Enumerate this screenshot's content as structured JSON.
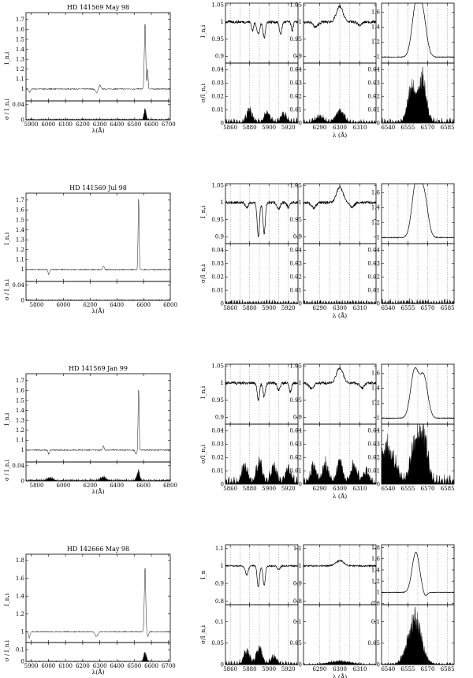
{
  "figure": {
    "rows": [
      {
        "title": "HD 141569 May 98",
        "full": {
          "xlabel": "λ(Å)",
          "ylabel": "I_n,i",
          "sigma_ylabel": "σ / I_n,i",
          "xlim": [
            5870,
            6710
          ],
          "xticks": [
            5900,
            6000,
            6100,
            6200,
            6300,
            6400,
            6500,
            6600,
            6700
          ],
          "ylim": [
            0.88,
            1.77
          ],
          "yticks": [
            1,
            1.1,
            1.2,
            1.3,
            1.4,
            1.5,
            1.6,
            1.7
          ],
          "sigma_ylim": [
            0,
            0.05
          ],
          "sigma_yticks": [
            0,
            0.04
          ],
          "features": [
            [
              5890,
              0.97,
              6
            ],
            [
              6280,
              0.96,
              6
            ],
            [
              6300,
              1.04,
              5
            ],
            [
              6563,
              1.66,
              4
            ],
            [
              6578,
              1.2,
              3
            ]
          ],
          "sigma_features": [
            [
              6563,
              0.03,
              6
            ]
          ],
          "sigma_noise": 0.004
        },
        "zooms": {
          "ylabel": "I_n,i",
          "sigma_ylabel": "σ/I_n,i",
          "xlabel": "λ (Å)",
          "nai": {
            "xlim": [
              5855,
              5930
            ],
            "xticks": [
              5860,
              5880,
              5900,
              5920
            ],
            "ylim": [
              0.88,
              1.055
            ],
            "yticks": [
              0.9,
              0.95,
              1,
              1.05
            ],
            "features": [
              [
                5889,
                0.965,
                1.5
              ],
              [
                5895,
                0.955,
                1.2
              ],
              [
                5883,
                0.975,
                1
              ],
              [
                5912,
                0.965,
                1.3
              ],
              [
                5924,
                0.975,
                1
              ]
            ],
            "sigma_features": [
              [
                5880,
                0.01,
                3
              ],
              [
                5898,
                0.008,
                3
              ],
              [
                5915,
                0.007,
                3
              ]
            ],
            "sigma_noise": 0.004
          },
          "oi": {
            "xlim": [
              6282,
              6318
            ],
            "xticks": [
              6290,
              6300,
              6310
            ],
            "ylim": [
              0.88,
              1.055
            ],
            "yticks": [
              0.9,
              0.95,
              1,
              1.05
            ],
            "features": [
              [
                6300,
                1.045,
                1.6
              ],
              [
                6288,
                0.985,
                1.2
              ],
              [
                6310,
                0.99,
                1
              ]
            ],
            "sigma_features": [
              [
                6300,
                0.01,
                2
              ],
              [
                6290,
                0.005,
                2
              ]
            ],
            "sigma_noise": 0.003
          },
          "ha": {
            "xlim": [
              6535,
              6590
            ],
            "xticks": [
              6540,
              6555,
              6570,
              6585
            ],
            "ylim": [
              0.92,
              1.72
            ],
            "yticks": [
              1,
              1.2,
              1.4,
              1.6
            ],
            "features": [
              [
                6561,
                1.64,
                3
              ],
              [
                6566,
                1.55,
                3
              ]
            ],
            "sigma_features": [
              [
                6558,
                0.03,
                3
              ],
              [
                6566,
                0.035,
                3
              ]
            ],
            "sigma_noise": 0.004
          }
        }
      },
      {
        "title": "HD 141569 Jul 98",
        "full": {
          "xlabel": "λ(Å)",
          "ylabel": "I_n,i",
          "sigma_ylabel": "σ / I_n,i",
          "xlim": [
            5720,
            6800
          ],
          "xticks": [
            5800,
            6000,
            6200,
            6400,
            6600,
            6800
          ],
          "ylim": [
            0.88,
            1.77
          ],
          "yticks": [
            1,
            1.1,
            1.2,
            1.3,
            1.4,
            1.5,
            1.6,
            1.7
          ],
          "sigma_ylim": [
            0,
            0.05
          ],
          "sigma_yticks": [
            0,
            0.04
          ],
          "features": [
            [
              5890,
              0.95,
              5
            ],
            [
              6300,
              1.04,
              5
            ],
            [
              6563,
              1.72,
              4
            ]
          ],
          "sigma_features": [],
          "sigma_noise": 0.003
        },
        "zooms": {
          "ylabel": "I_n,i",
          "sigma_ylabel": "σ/I_n,i",
          "xlabel": "λ (Å)",
          "nai": {
            "xlim": [
              5855,
              5930
            ],
            "xticks": [
              5860,
              5880,
              5900,
              5920
            ],
            "ylim": [
              0.88,
              1.055
            ],
            "yticks": [
              0.9,
              0.95,
              1,
              1.05
            ],
            "features": [
              [
                5889,
                0.9,
                1.2
              ],
              [
                5895,
                0.91,
                1.2
              ],
              [
                5877,
                0.985,
                1.5
              ],
              [
                5910,
                0.98,
                1.5
              ],
              [
                5920,
                0.985,
                1.2
              ]
            ],
            "sigma_features": [],
            "sigma_noise": 0.003
          },
          "oi": {
            "xlim": [
              6282,
              6318
            ],
            "xticks": [
              6290,
              6300,
              6310
            ],
            "ylim": [
              0.88,
              1.055
            ],
            "yticks": [
              0.9,
              0.95,
              1,
              1.05
            ],
            "features": [
              [
                6300,
                1.045,
                1.6
              ],
              [
                6287,
                0.985,
                1.2
              ],
              [
                6306,
                0.985,
                1
              ]
            ],
            "sigma_features": [],
            "sigma_noise": 0.003
          },
          "ha": {
            "xlim": [
              6535,
              6590
            ],
            "xticks": [
              6540,
              6555,
              6570,
              6585
            ],
            "ylim": [
              0.92,
              1.72
            ],
            "yticks": [
              1,
              1.2,
              1.4,
              1.6
            ],
            "features": [
              [
                6561,
                1.7,
                3
              ],
              [
                6567,
                1.58,
                3
              ]
            ],
            "sigma_features": [],
            "sigma_noise": 0.004
          }
        }
      },
      {
        "title": "HD 141569 Jan 99",
        "full": {
          "xlabel": "λ(Å)",
          "ylabel": "I_n,i",
          "sigma_ylabel": "σ / I_n,i",
          "xlim": [
            5720,
            6800
          ],
          "xticks": [
            5800,
            6000,
            6200,
            6400,
            6600,
            6800
          ],
          "ylim": [
            0.88,
            1.77
          ],
          "yticks": [
            1,
            1.1,
            1.2,
            1.3,
            1.4,
            1.5,
            1.6,
            1.7
          ],
          "sigma_ylim": [
            0,
            0.05
          ],
          "sigma_yticks": [
            0,
            0.04
          ],
          "features": [
            [
              5890,
              0.96,
              5
            ],
            [
              6300,
              1.04,
              5
            ],
            [
              6563,
              1.62,
              4
            ],
            [
              6545,
              0.96,
              8
            ]
          ],
          "sigma_features": [
            [
              6560,
              0.03,
              10
            ],
            [
              5900,
              0.008,
              20
            ],
            [
              6300,
              0.01,
              20
            ]
          ],
          "sigma_noise": 0.006
        },
        "zooms": {
          "ylabel": "I_n,i",
          "sigma_ylabel": "σ/I_n,i",
          "xlabel": "λ (Å)",
          "nai": {
            "xlim": [
              5855,
              5930
            ],
            "xticks": [
              5860,
              5880,
              5900,
              5920
            ],
            "ylim": [
              0.88,
              1.055
            ],
            "yticks": [
              0.9,
              0.95,
              1,
              1.05
            ],
            "features": [
              [
                5889,
                0.95,
                1.2
              ],
              [
                5895,
                0.96,
                1.2
              ],
              [
                5910,
                0.98,
                1.5
              ],
              [
                5922,
                0.975,
                1.2
              ]
            ],
            "sigma_features": [
              [
                5875,
                0.015,
                3
              ],
              [
                5890,
                0.018,
                3
              ],
              [
                5905,
                0.014,
                3
              ],
              [
                5920,
                0.012,
                3
              ]
            ],
            "sigma_noise": 0.006
          },
          "oi": {
            "xlim": [
              6282,
              6318
            ],
            "xticks": [
              6290,
              6300,
              6310
            ],
            "ylim": [
              0.88,
              1.055
            ],
            "yticks": [
              0.9,
              0.95,
              1,
              1.05
            ],
            "features": [
              [
                6300,
                1.045,
                1.6
              ],
              [
                6286,
                0.985,
                1.2
              ],
              [
                6311,
                0.985,
                1
              ]
            ],
            "sigma_features": [
              [
                6287,
                0.014,
                1.5
              ],
              [
                6293,
                0.016,
                1.5
              ],
              [
                6300,
                0.018,
                1.5
              ],
              [
                6307,
                0.015,
                1.5
              ],
              [
                6313,
                0.01,
                1.5
              ]
            ],
            "sigma_noise": 0.005
          },
          "ha": {
            "xlim": [
              6535,
              6590
            ],
            "xticks": [
              6540,
              6555,
              6570,
              6585
            ],
            "ylim": [
              0.92,
              1.72
            ],
            "yticks": [
              1,
              1.2,
              1.4,
              1.6
            ],
            "features": [
              [
                6560,
                1.63,
                3
              ],
              [
                6567,
                1.55,
                3
              ]
            ],
            "sigma_features": [
              [
                6540,
                0.03,
                5
              ],
              [
                6560,
                0.035,
                3
              ],
              [
                6567,
                0.04,
                3
              ]
            ],
            "sigma_noise": 0.008
          }
        }
      },
      {
        "title": "HD 142666 May 98",
        "full": {
          "xlabel": "λ(Å)",
          "ylabel": "I_n,i",
          "sigma_ylabel": "σ / I_n,i",
          "xlim": [
            5870,
            6710
          ],
          "xticks": [
            5900,
            6000,
            6100,
            6200,
            6300,
            6400,
            6500,
            6600,
            6700
          ],
          "ylim": [
            0.88,
            1.87
          ],
          "yticks": [
            1,
            1.2,
            1.4,
            1.6,
            1.8
          ],
          "sigma_ylim": [
            0,
            0.16
          ],
          "sigma_yticks": [
            0,
            0.1
          ],
          "features": [
            [
              5889,
              0.93,
              4
            ],
            [
              6280,
              0.95,
              8
            ],
            [
              6563,
              1.72,
              4
            ],
            [
              6580,
              0.95,
              4
            ]
          ],
          "sigma_features": [
            [
              6563,
              0.08,
              8
            ]
          ],
          "sigma_noise": 0.008
        },
        "zooms": {
          "ylabel": "I_n",
          "sigma_ylabel": "σ/I_n,i",
          "xlabel": "λ (Å)",
          "nai": {
            "xlim": [
              5855,
              5930
            ],
            "xticks": [
              5860,
              5880,
              5900,
              5920
            ],
            "ylim": [
              0.78,
              1.12
            ],
            "yticks": [
              0.8,
              0.9,
              1,
              1.1
            ],
            "features": [
              [
                5889,
                0.88,
                1.2
              ],
              [
                5895,
                0.89,
                1.2
              ],
              [
                5877,
                0.95,
                1.5
              ],
              [
                5910,
                0.98,
                1.5
              ]
            ],
            "sigma_features": [
              [
                5877,
                0.035,
                3
              ],
              [
                5890,
                0.04,
                3
              ],
              [
                5905,
                0.02,
                3
              ]
            ],
            "sigma_noise": 0.01
          },
          "oi": {
            "xlim": [
              6282,
              6318
            ],
            "xticks": [
              6290,
              6300,
              6310
            ],
            "ylim": [
              0.78,
              1.12
            ],
            "yticks": [
              0.8,
              0.9,
              1,
              1.1
            ],
            "features": [
              [
                6300,
                1.03,
                2
              ]
            ],
            "sigma_features": [
              [
                6300,
                0.008,
                5
              ]
            ],
            "sigma_noise": 0.004
          },
          "ha": {
            "xlim": [
              6535,
              6590
            ],
            "xticks": [
              6540,
              6555,
              6570,
              6585
            ],
            "ylim": [
              0.78,
              1.85
            ],
            "yticks": [
              0.8,
              1,
              1.2,
              1.4,
              1.6,
              1.8
            ],
            "features": [
              [
                6561,
                1.72,
                2.8
              ],
              [
                6568,
                0.92,
                1.5
              ]
            ],
            "sigma_features": [
              [
                6560,
                0.12,
                5
              ]
            ],
            "sigma_noise": 0.006
          }
        }
      }
    ]
  },
  "chart_data": [
    {
      "type": "line",
      "description_panels": "four observations, each with a full-range normalized spectrum and three zoom windows (Na I D, [O I] 6300, H-alpha) plus sigma/I_n,i variability panels",
      "series": [
        {
          "name": "HD 141569 May 98",
          "halpha_peak": 1.66
        },
        {
          "name": "HD 141569 Jul 98",
          "halpha_peak": 1.72
        },
        {
          "name": "HD 141569 Jan 99",
          "halpha_peak": 1.62
        },
        {
          "name": "HD 142666 May 98",
          "halpha_peak": 1.72
        }
      ],
      "xlabel": "λ (Å)",
      "ylabel": "I_n,i"
    }
  ]
}
